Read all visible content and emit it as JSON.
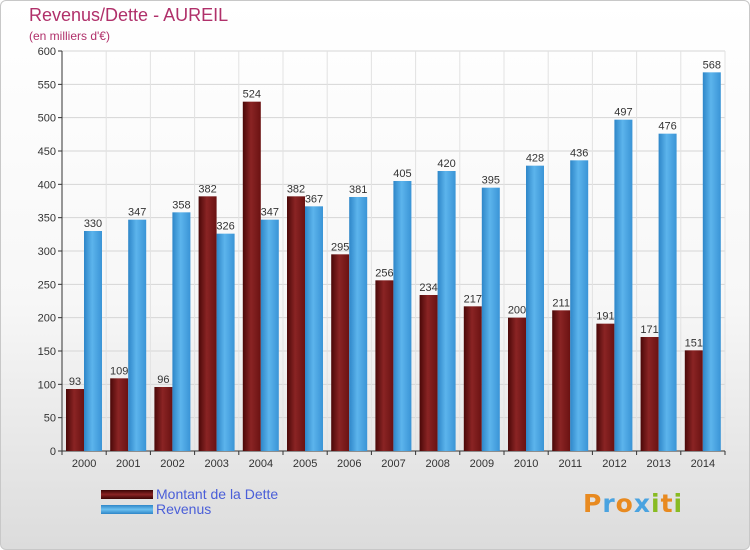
{
  "chart_data": {
    "type": "bar",
    "title": "Revenus/Dette - AUREIL",
    "subtitle": "(en milliers d'€)",
    "categories": [
      "2000",
      "2001",
      "2002",
      "2003",
      "2004",
      "2005",
      "2006",
      "2007",
      "2008",
      "2009",
      "2010",
      "2011",
      "2012",
      "2013",
      "2014"
    ],
    "series": [
      {
        "name": "Montant de la Dette",
        "color": "#7a1a1a",
        "values": [
          93,
          109,
          96,
          382,
          524,
          382,
          295,
          256,
          234,
          217,
          200,
          211,
          191,
          171,
          151
        ]
      },
      {
        "name": "Revenus",
        "color": "#4aa3e0",
        "values": [
          330,
          347,
          358,
          326,
          347,
          367,
          381,
          405,
          420,
          395,
          428,
          436,
          497,
          476,
          568
        ]
      }
    ],
    "ylim": [
      0,
      600
    ],
    "yticks": [
      0,
      50,
      100,
      150,
      200,
      250,
      300,
      350,
      400,
      450,
      500,
      550,
      600
    ],
    "grid": true,
    "legend_position": "bottom-left"
  },
  "branding": {
    "logo_letters": [
      "P",
      "r",
      "o",
      "x",
      "i",
      "t",
      "i"
    ],
    "logo_colors": [
      "#e88a20",
      "#4aa3e0",
      "#e88a20",
      "#4aa3e0",
      "#88bb22",
      "#e88a20",
      "#88bb22"
    ]
  }
}
